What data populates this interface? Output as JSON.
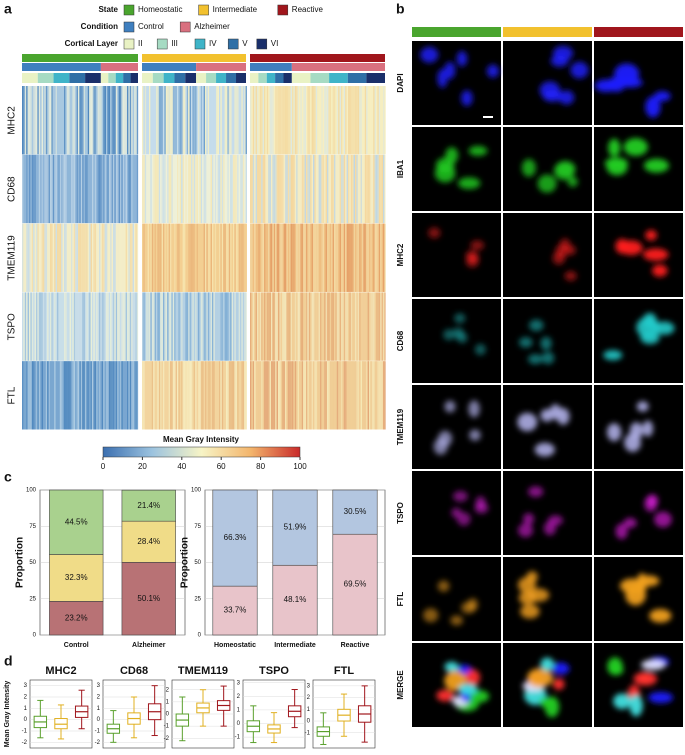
{
  "panels": [
    "a",
    "b",
    "c",
    "d"
  ],
  "heatmap": {
    "legend": [
      {
        "title": "State",
        "items": [
          {
            "label": "Homeostatic",
            "color": "#4aa52e"
          },
          {
            "label": "Intermediate",
            "color": "#f2c12e"
          },
          {
            "label": "Reactive",
            "color": "#a0161c"
          }
        ]
      },
      {
        "title": "Condition",
        "items": [
          {
            "label": "Control",
            "color": "#3f7fbf"
          },
          {
            "label": "Alzheimer",
            "color": "#d9707f"
          }
        ]
      },
      {
        "title": "Cortical Layer",
        "items": [
          {
            "label": "II",
            "color": "#e9f2c4"
          },
          {
            "label": "III",
            "color": "#a6dbc3"
          },
          {
            "label": "IV",
            "color": "#3fb4c8"
          },
          {
            "label": "V",
            "color": "#2f6fa6"
          },
          {
            "label": "VI",
            "color": "#1a2f6a"
          }
        ]
      }
    ],
    "rows": [
      "MHC2",
      "CD68",
      "TMEM119",
      "TSPO",
      "FTL"
    ],
    "row_colors": [
      [
        [
          "#4d86bd",
          "#a8c8e0",
          "#e8eedc"
        ],
        [
          "#6d9fcb",
          "#c5dceb",
          "#f3efc6"
        ],
        [
          "#dde8e0",
          "#f6eec0",
          "#f3d9a0"
        ]
      ],
      [
        [
          "#5b8fc4",
          "#8fb5d8",
          "#b8d1e5"
        ],
        [
          "#c8dde8",
          "#eef0d8",
          "#f5e7b5"
        ],
        [
          "#bcd5e5",
          "#f4ecc4",
          "#f5d69c"
        ]
      ],
      [
        [
          "#c9dde7",
          "#f3edc8",
          "#f4d89f"
        ],
        [
          "#f6e3ad",
          "#f3cf92",
          "#eab57a"
        ],
        [
          "#f4dba5",
          "#efbf82",
          "#e5a068"
        ]
      ],
      [
        [
          "#9ec1dc",
          "#c8dde8",
          "#e9efd8"
        ],
        [
          "#7fadd4",
          "#b4d0e3",
          "#e0eadc"
        ],
        [
          "#f3e7bb",
          "#f1cf98",
          "#e6ad79"
        ]
      ],
      [
        [
          "#4d86bd",
          "#7aa7d0",
          "#adcbe2"
        ],
        [
          "#f6ebbd",
          "#f2d49e",
          "#e9bb84"
        ],
        [
          "#f6e9b8",
          "#f0cd96",
          "#e3a677"
        ]
      ]
    ],
    "colorbar": {
      "title": "Mean Gray Intensity",
      "lim": [
        0,
        100
      ],
      "ticks": [
        0,
        20,
        40,
        60,
        80,
        100
      ]
    }
  },
  "microscopy": {
    "rows": [
      {
        "label": "DAPI",
        "color": "#2020ff"
      },
      {
        "label": "IBA1",
        "color": "#22cc22"
      },
      {
        "label": "MHC2",
        "color": "#ff2020"
      },
      {
        "label": "CD68",
        "color": "#22cccc"
      },
      {
        "label": "TMEM119",
        "color": "#b0b0e8"
      },
      {
        "label": "TSPO",
        "color": "#e020e0"
      },
      {
        "label": "FTL",
        "color": "#f0a020"
      },
      {
        "label": "MERGE",
        "color": "#000000"
      }
    ]
  },
  "chart_data": [
    {
      "type": "stacked-bar",
      "ylabel": "Proportion",
      "categories": [
        "Control",
        "Alzheimer"
      ],
      "ylim": [
        0,
        100
      ],
      "yticks": [
        0,
        25,
        50,
        75,
        100
      ],
      "grid": true,
      "series": [
        {
          "color": "#b87275",
          "values": [
            23.2,
            50.1
          ],
          "value_labels": [
            "23.2%",
            "50.1%"
          ]
        },
        {
          "color": "#f0dc88",
          "values": [
            32.3,
            28.4
          ],
          "value_labels": [
            "32.3%",
            "28.4%"
          ]
        },
        {
          "color": "#a9d18e",
          "values": [
            44.5,
            21.4
          ],
          "value_labels": [
            "44.5%",
            "21.4%"
          ]
        }
      ]
    },
    {
      "type": "stacked-bar",
      "ylabel": "Proportion",
      "categories": [
        "Homeostatic",
        "Intermediate",
        "Reactive"
      ],
      "ylim": [
        0,
        100
      ],
      "yticks": [
        0,
        25,
        50,
        75,
        100
      ],
      "grid": true,
      "series": [
        {
          "color": "#e8c4ca",
          "values": [
            33.7,
            48.1,
            69.5
          ],
          "value_labels": [
            "33.7%",
            "48.1%",
            "69.5%"
          ]
        },
        {
          "color": "#b3c6e0",
          "values": [
            66.3,
            51.9,
            30.5
          ],
          "value_labels": [
            "66.3%",
            "51.9%",
            "30.5%"
          ]
        }
      ]
    },
    {
      "type": "box",
      "title": "MHC2",
      "ylabel": "Mean Gray Intensity",
      "ylim": [
        -2.5,
        3.5
      ],
      "yticks": [
        -2,
        -1,
        0,
        1,
        2,
        3
      ],
      "grid": true,
      "boxes": [
        {
          "color": "#5aa02c",
          "whislo": -1.6,
          "q1": -0.7,
          "med": -0.2,
          "q3": 0.3,
          "whishi": 1.7
        },
        {
          "color": "#e0b020",
          "whislo": -1.7,
          "q1": -0.8,
          "med": -0.4,
          "q3": 0.1,
          "whishi": 1.3
        },
        {
          "color": "#a0161c",
          "whislo": -0.8,
          "q1": 0.2,
          "med": 0.7,
          "q3": 1.2,
          "whishi": 2.6
        }
      ]
    },
    {
      "type": "box",
      "title": "CD68",
      "ylim": [
        -2.5,
        3.5
      ],
      "yticks": [
        -2,
        -1,
        0,
        1,
        2,
        3
      ],
      "grid": true,
      "boxes": [
        {
          "color": "#5aa02c",
          "whislo": -2.0,
          "q1": -1.2,
          "med": -0.8,
          "q3": -0.4,
          "whishi": 0.8
        },
        {
          "color": "#e0b020",
          "whislo": -1.6,
          "q1": -0.4,
          "med": 0.1,
          "q3": 0.6,
          "whishi": 2.0
        },
        {
          "color": "#a0161c",
          "whislo": -1.4,
          "q1": 0.0,
          "med": 0.7,
          "q3": 1.4,
          "whishi": 3.0
        }
      ]
    },
    {
      "type": "box",
      "title": "TMEM119",
      "ylim": [
        -2.8,
        2.8
      ],
      "yticks": [
        -2,
        -1,
        0,
        1,
        2
      ],
      "grid": true,
      "boxes": [
        {
          "color": "#5aa02c",
          "whislo": -2.2,
          "q1": -1.0,
          "med": -0.5,
          "q3": 0.0,
          "whishi": 1.4
        },
        {
          "color": "#e0b020",
          "whislo": -1.0,
          "q1": 0.1,
          "med": 0.5,
          "q3": 0.9,
          "whishi": 2.0
        },
        {
          "color": "#a0161c",
          "whislo": -1.0,
          "q1": 0.3,
          "med": 0.7,
          "q3": 1.1,
          "whishi": 2.3
        }
      ]
    },
    {
      "type": "box",
      "title": "TSPO",
      "ylim": [
        -1.8,
        3.2
      ],
      "yticks": [
        -1,
        0,
        1,
        2,
        3
      ],
      "grid": true,
      "boxes": [
        {
          "color": "#5aa02c",
          "whislo": -1.4,
          "q1": -0.6,
          "med": -0.2,
          "q3": 0.2,
          "whishi": 1.3
        },
        {
          "color": "#e0b020",
          "whislo": -1.4,
          "q1": -0.7,
          "med": -0.4,
          "q3": -0.1,
          "whishi": 0.8
        },
        {
          "color": "#a0161c",
          "whislo": -0.3,
          "q1": 0.5,
          "med": 0.9,
          "q3": 1.3,
          "whishi": 2.5
        }
      ]
    },
    {
      "type": "box",
      "title": "FTL",
      "ylim": [
        -2.3,
        3.5
      ],
      "yticks": [
        -1,
        0,
        1,
        2,
        3
      ],
      "grid": true,
      "boxes": [
        {
          "color": "#5aa02c",
          "whislo": -2.0,
          "q1": -1.3,
          "med": -0.9,
          "q3": -0.5,
          "whishi": 0.7
        },
        {
          "color": "#e0b020",
          "whislo": -1.3,
          "q1": 0.0,
          "med": 0.5,
          "q3": 1.0,
          "whishi": 2.3
        },
        {
          "color": "#a0161c",
          "whislo": -1.8,
          "q1": -0.1,
          "med": 0.6,
          "q3": 1.3,
          "whishi": 3.0
        }
      ]
    }
  ]
}
